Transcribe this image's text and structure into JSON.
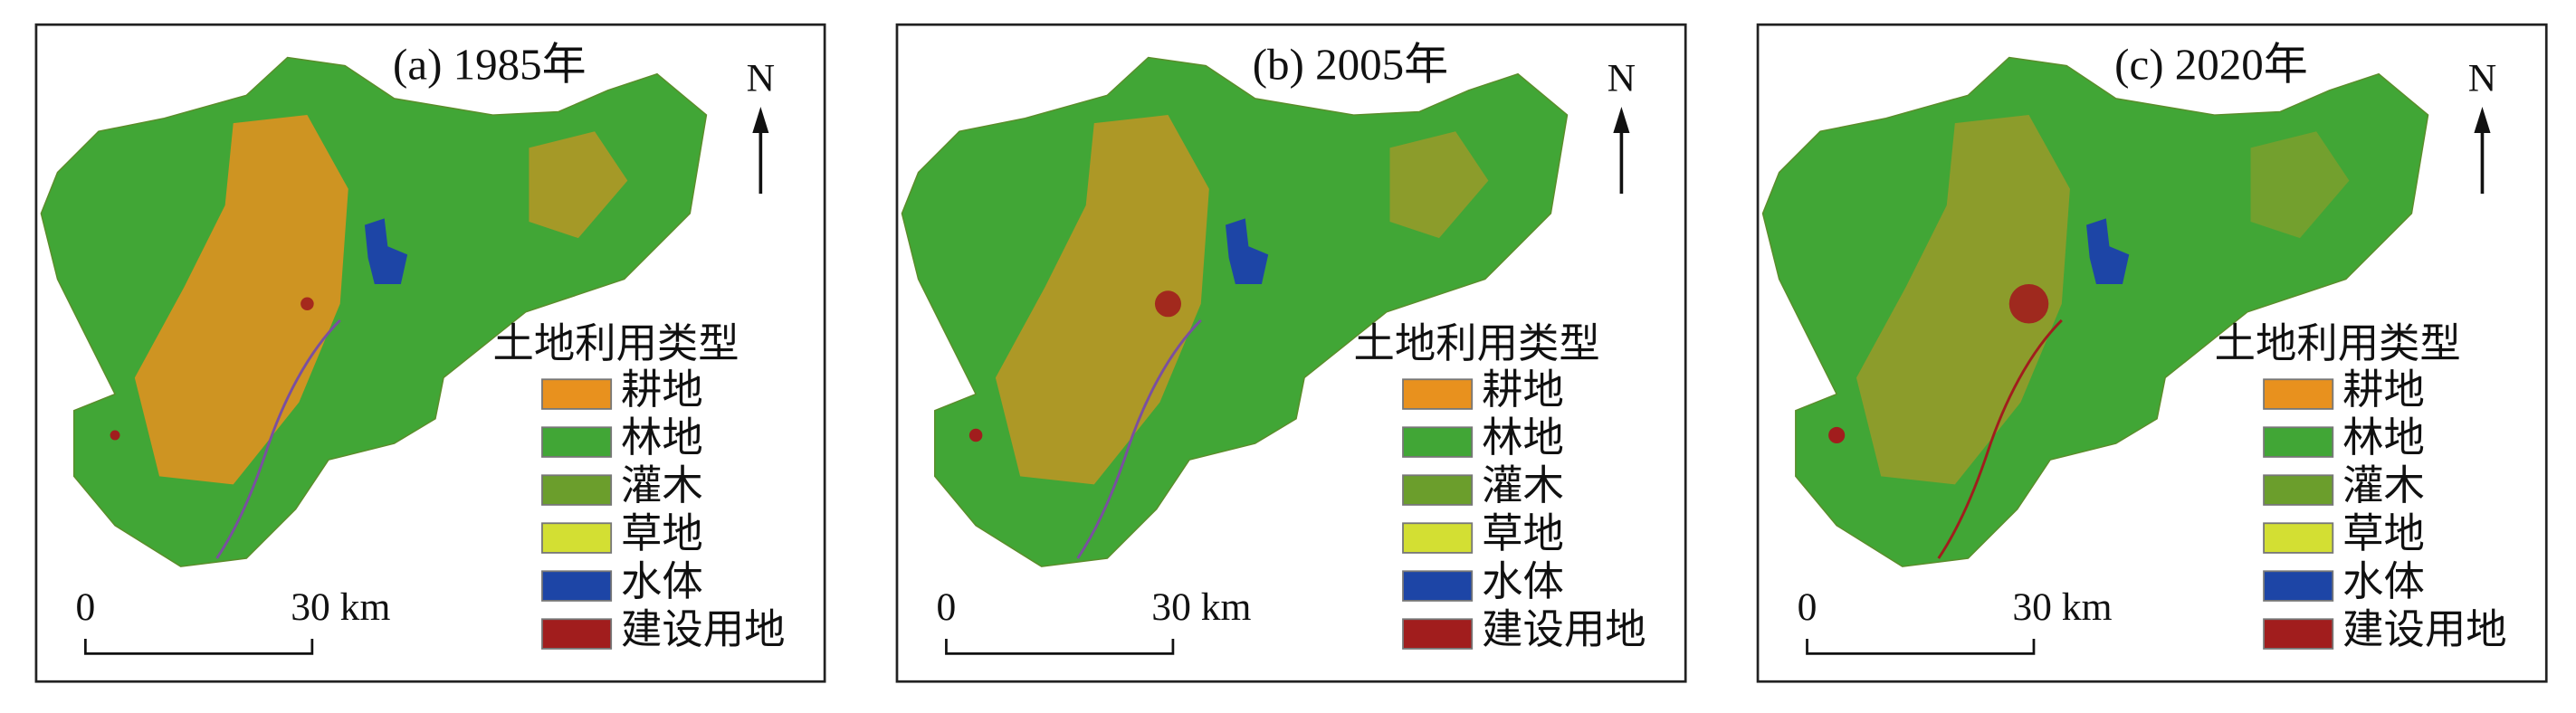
{
  "panels": [
    {
      "title": "(a) 1985年"
    },
    {
      "title": "(b) 2005年"
    },
    {
      "title": "(c) 2020年"
    }
  ],
  "north": "N",
  "legend": {
    "title": "土地利用类型",
    "items": [
      {
        "label": "耕地",
        "color": "#e8911e"
      },
      {
        "label": "林地",
        "color": "#41a636"
      },
      {
        "label": "灌木",
        "color": "#6b9e2c"
      },
      {
        "label": "草地",
        "color": "#d3df33"
      },
      {
        "label": "水体",
        "color": "#1d45a6"
      },
      {
        "label": "建设用地",
        "color": "#a11d1d"
      }
    ]
  },
  "scale_bar": {
    "start": "0",
    "end": "30 km"
  }
}
